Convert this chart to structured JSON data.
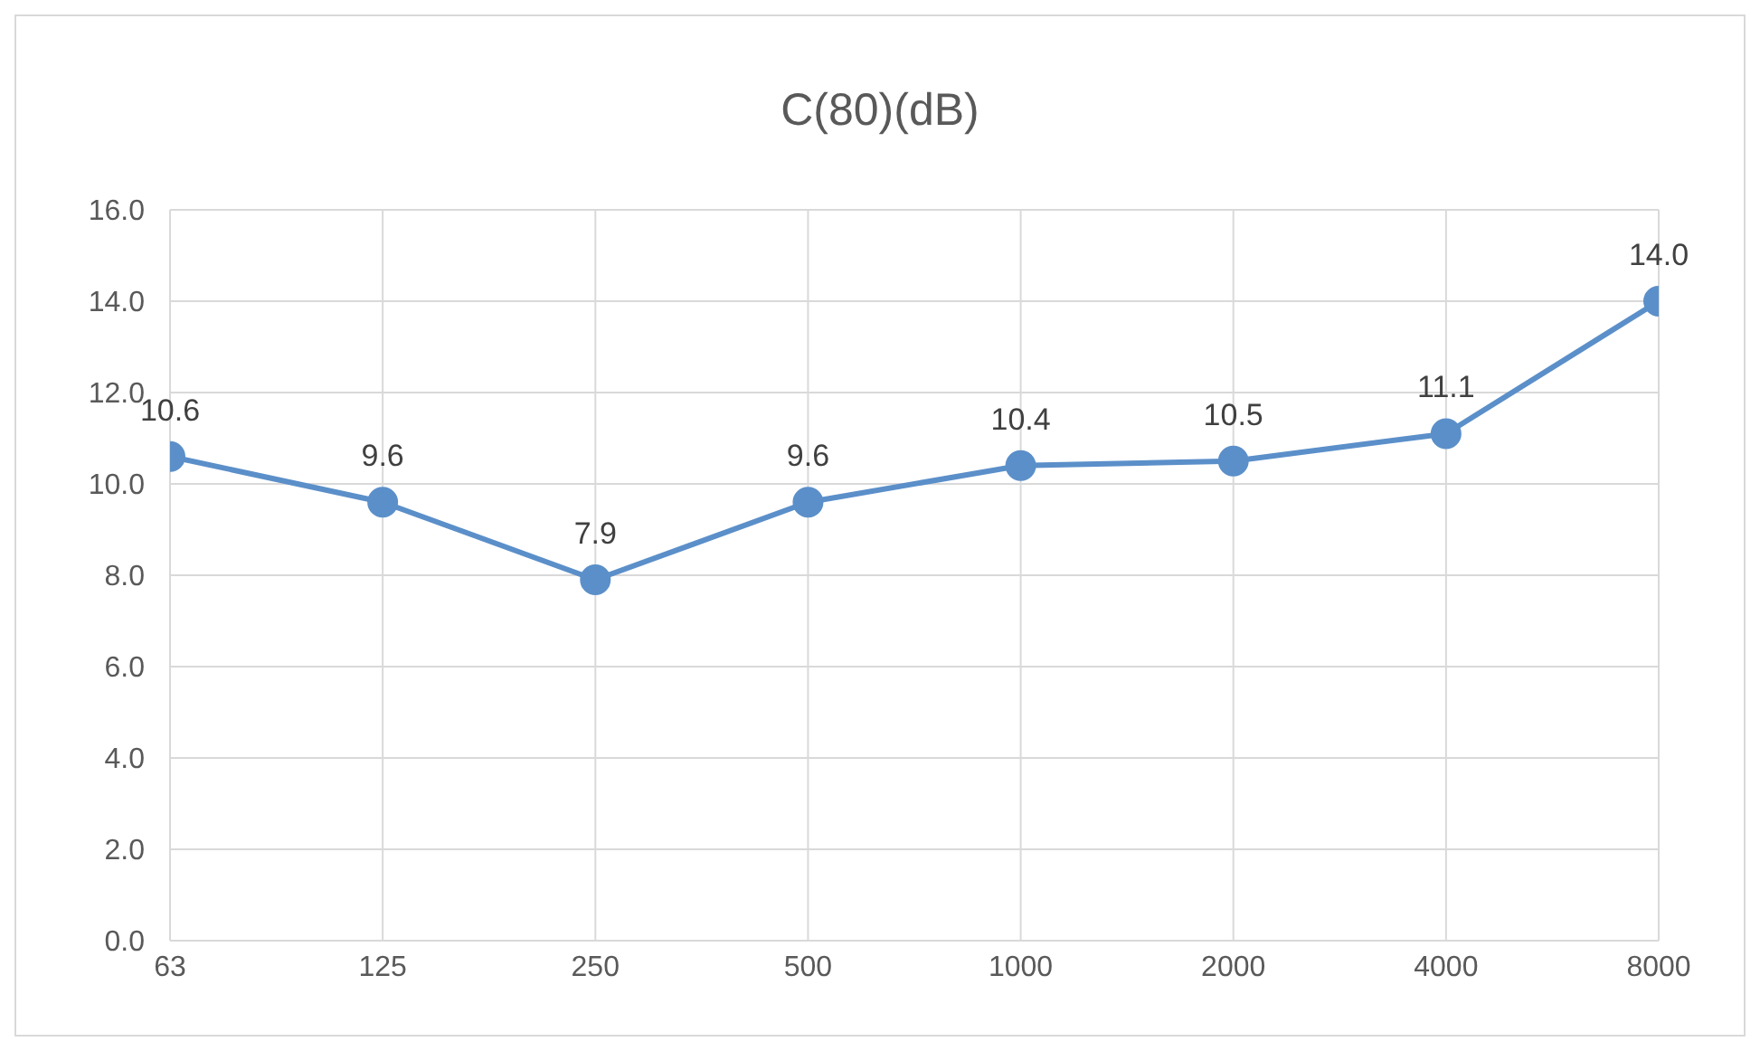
{
  "chart_data": {
    "type": "line",
    "title": "C(80)(dB)",
    "categories": [
      "63",
      "125",
      "250",
      "500",
      "1000",
      "2000",
      "4000",
      "8000"
    ],
    "series": [
      {
        "color": "#5b8fc9",
        "values": [
          10.6,
          9.6,
          7.9,
          9.6,
          10.4,
          10.5,
          11.1,
          14.0
        ],
        "value_labels": [
          "10.6",
          "9.6",
          "7.9",
          "9.6",
          "10.4",
          "10.5",
          "11.1",
          "14.0"
        ]
      }
    ],
    "ylim": [
      0,
      16
    ],
    "yticks": [
      {
        "value": 0,
        "label": "0.0"
      },
      {
        "value": 2,
        "label": "2.0"
      },
      {
        "value": 4,
        "label": "4.0"
      },
      {
        "value": 6,
        "label": "6.0"
      },
      {
        "value": 8,
        "label": "8.0"
      },
      {
        "value": 10,
        "label": "10.0"
      },
      {
        "value": 12,
        "label": "12.0"
      },
      {
        "value": 14,
        "label": "14.0"
      },
      {
        "value": 16,
        "label": "16.0"
      }
    ],
    "grid": true,
    "marker": "circle",
    "line_style": "solid",
    "legend": false
  }
}
